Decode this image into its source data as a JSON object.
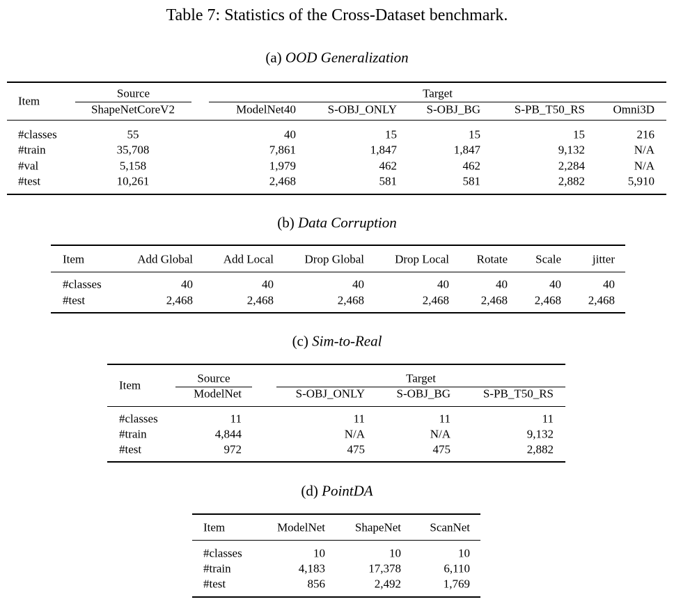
{
  "caption": "Table 7: Statistics of the Cross-Dataset benchmark.",
  "tables": [
    {
      "label": "(a)",
      "title": "OOD Generalization",
      "item_header": "Item",
      "groups": [
        {
          "name": "Source",
          "columns": [
            "ShapeNetCoreV2"
          ]
        },
        {
          "name": "Target",
          "columns": [
            "ModelNet40",
            "S-OBJ_ONLY",
            "S-OBJ_BG",
            "S-PB_T50_RS",
            "Omni3D"
          ]
        }
      ],
      "rows": [
        [
          "#classes",
          "55",
          "40",
          "15",
          "15",
          "15",
          "216"
        ],
        [
          "#train",
          "35,708",
          "7,861",
          "1,847",
          "1,847",
          "9,132",
          "N/A"
        ],
        [
          "#val",
          "5,158",
          "1,979",
          "462",
          "462",
          "2,284",
          "N/A"
        ],
        [
          "#test",
          "10,261",
          "2,468",
          "581",
          "581",
          "2,882",
          "5,910"
        ]
      ]
    },
    {
      "label": "(b)",
      "title": "Data Corruption",
      "item_header": "Item",
      "columns": [
        "Add Global",
        "Add Local",
        "Drop Global",
        "Drop Local",
        "Rotate",
        "Scale",
        "jitter"
      ],
      "rows": [
        [
          "#classes",
          "40",
          "40",
          "40",
          "40",
          "40",
          "40",
          "40"
        ],
        [
          "#test",
          "2,468",
          "2,468",
          "2,468",
          "2,468",
          "2,468",
          "2,468",
          "2,468"
        ]
      ]
    },
    {
      "label": "(c)",
      "title": "Sim-to-Real",
      "item_header": "Item",
      "groups": [
        {
          "name": "Source",
          "columns": [
            "ModelNet"
          ]
        },
        {
          "name": "Target",
          "columns": [
            "S-OBJ_ONLY",
            "S-OBJ_BG",
            "S-PB_T50_RS"
          ]
        }
      ],
      "rows": [
        [
          "#classes",
          "11",
          "11",
          "11",
          "11"
        ],
        [
          "#train",
          "4,844",
          "N/A",
          "N/A",
          "9,132"
        ],
        [
          "#test",
          "972",
          "475",
          "475",
          "2,882"
        ]
      ]
    },
    {
      "label": "(d)",
      "title": "PointDA",
      "item_header": "Item",
      "columns": [
        "ModelNet",
        "ShapeNet",
        "ScanNet"
      ],
      "rows": [
        [
          "#classes",
          "10",
          "10",
          "10"
        ],
        [
          "#train",
          "4,183",
          "17,378",
          "6,110"
        ],
        [
          "#test",
          "856",
          "2,492",
          "1,769"
        ]
      ]
    }
  ]
}
